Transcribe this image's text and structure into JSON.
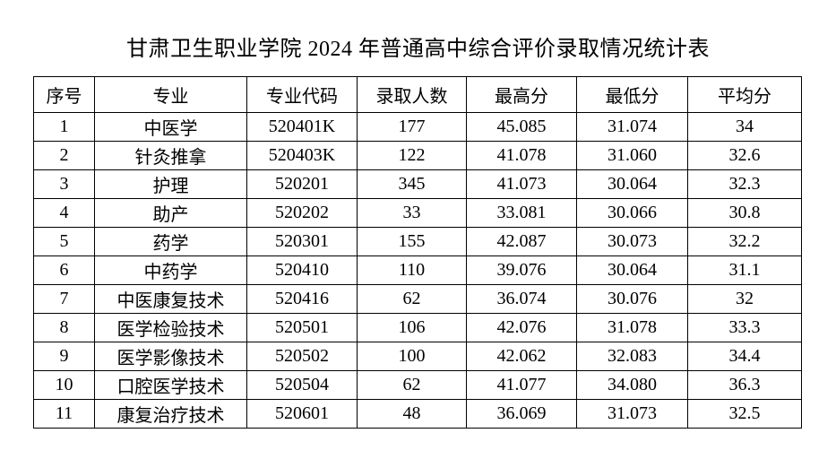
{
  "page": {
    "background_color": "#ffffff",
    "text_color": "#000000",
    "border_color": "#000000"
  },
  "title": "甘肃卫生职业学院 2024 年普通高中综合评价录取情况统计表",
  "table": {
    "headers": [
      "序号",
      "专业",
      "专业代码",
      "录取人数",
      "最高分",
      "最低分",
      "平均分"
    ],
    "rows": [
      [
        "1",
        "中医学",
        "520401K",
        "177",
        "45.085",
        "31.074",
        "34"
      ],
      [
        "2",
        "针灸推拿",
        "520403K",
        "122",
        "41.078",
        "31.060",
        "32.6"
      ],
      [
        "3",
        "护理",
        "520201",
        "345",
        "41.073",
        "30.064",
        "32.3"
      ],
      [
        "4",
        "助产",
        "520202",
        "33",
        "33.081",
        "30.066",
        "30.8"
      ],
      [
        "5",
        "药学",
        "520301",
        "155",
        "42.087",
        "30.073",
        "32.2"
      ],
      [
        "6",
        "中药学",
        "520410",
        "110",
        "39.076",
        "30.064",
        "31.1"
      ],
      [
        "7",
        "中医康复技术",
        "520416",
        "62",
        "36.074",
        "30.076",
        "32"
      ],
      [
        "8",
        "医学检验技术",
        "520501",
        "106",
        "42.076",
        "31.078",
        "33.3"
      ],
      [
        "9",
        "医学影像技术",
        "520502",
        "100",
        "42.062",
        "32.083",
        "34.4"
      ],
      [
        "10",
        "口腔医学技术",
        "520504",
        "62",
        "41.077",
        "34.080",
        "36.3"
      ],
      [
        "11",
        "康复治疗技术",
        "520601",
        "48",
        "36.069",
        "31.073",
        "32.5"
      ]
    ]
  }
}
